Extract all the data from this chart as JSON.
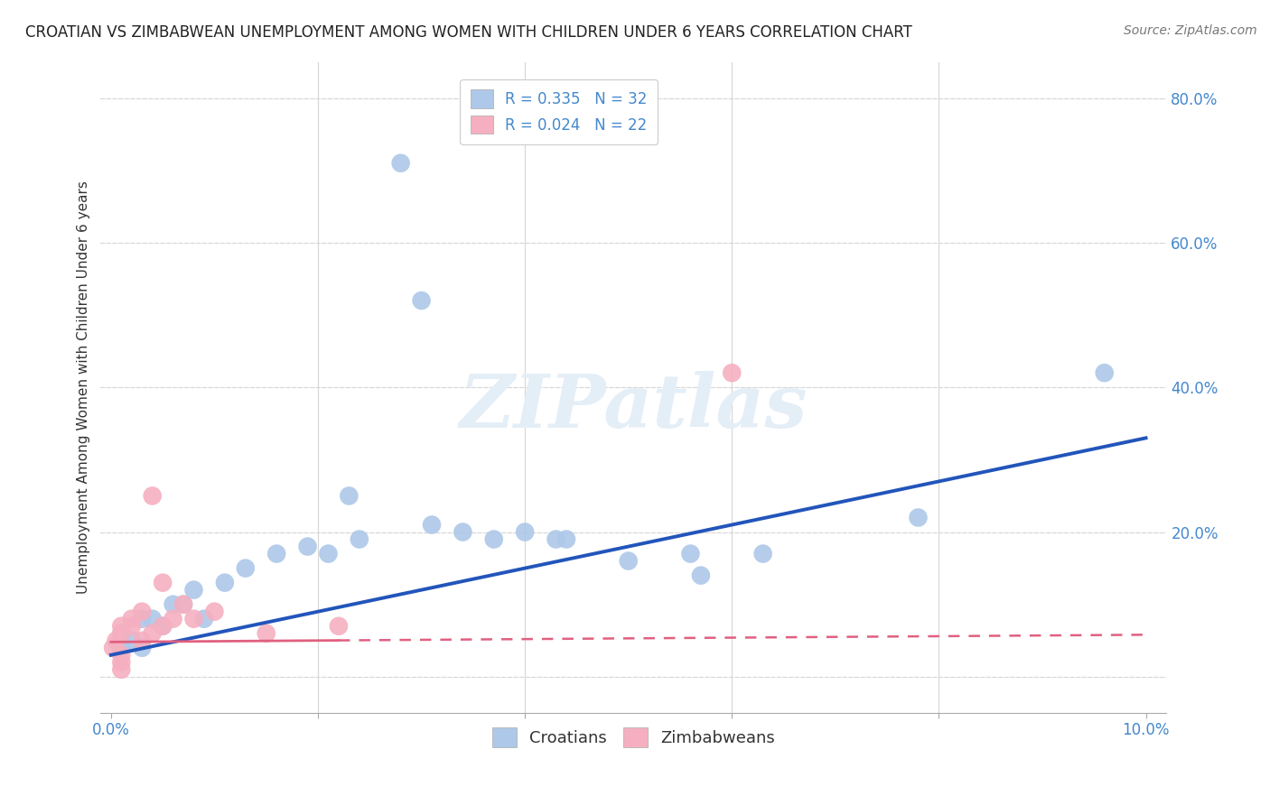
{
  "title": "CROATIAN VS ZIMBABWEAN UNEMPLOYMENT AMONG WOMEN WITH CHILDREN UNDER 6 YEARS CORRELATION CHART",
  "source": "Source: ZipAtlas.com",
  "ylabel": "Unemployment Among Women with Children Under 6 years",
  "xlim": [
    -0.001,
    0.102
  ],
  "ylim": [
    -0.05,
    0.85
  ],
  "ytick_vals": [
    0.0,
    0.2,
    0.4,
    0.6,
    0.8
  ],
  "ytick_labels": [
    "",
    "20.0%",
    "40.0%",
    "60.0%",
    "80.0%"
  ],
  "xtick_vals": [
    0.0,
    0.02,
    0.04,
    0.06,
    0.08,
    0.1
  ],
  "xtick_labels": [
    "0.0%",
    "",
    "",
    "",
    "",
    "10.0%"
  ],
  "croatian_R": 0.335,
  "croatian_N": 32,
  "zimbabwean_R": 0.024,
  "zimbabwean_N": 22,
  "croatian_color": "#adc8e8",
  "zimbabwean_color": "#f5afc0",
  "croatian_line_color": "#2255bb",
  "zimbabwean_line_color": "#e06080",
  "croatian_line_x0": 0.0,
  "croatian_line_y0": 0.03,
  "croatian_line_x1": 0.1,
  "croatian_line_y1": 0.33,
  "zimbabwean_line_x0": 0.0,
  "zimbabwean_line_y0": 0.048,
  "zimbabwean_line_x1": 0.1,
  "zimbabwean_line_y1": 0.058,
  "croatian_scatter_x": [
    0.001,
    0.001,
    0.002,
    0.003,
    0.003,
    0.004,
    0.005,
    0.006,
    0.007,
    0.008,
    0.009,
    0.011,
    0.013,
    0.016,
    0.019,
    0.021,
    0.023,
    0.024,
    0.028,
    0.03,
    0.031,
    0.034,
    0.037,
    0.04,
    0.043,
    0.044,
    0.05,
    0.056,
    0.057,
    0.063,
    0.078,
    0.096
  ],
  "croatian_scatter_y": [
    0.04,
    0.06,
    0.05,
    0.04,
    0.08,
    0.08,
    0.07,
    0.1,
    0.1,
    0.12,
    0.08,
    0.13,
    0.15,
    0.17,
    0.18,
    0.17,
    0.25,
    0.19,
    0.71,
    0.52,
    0.21,
    0.2,
    0.19,
    0.2,
    0.19,
    0.19,
    0.16,
    0.17,
    0.14,
    0.17,
    0.22,
    0.42
  ],
  "zimbabwean_scatter_x": [
    0.0002,
    0.0005,
    0.001,
    0.001,
    0.001,
    0.001,
    0.002,
    0.002,
    0.003,
    0.003,
    0.004,
    0.004,
    0.005,
    0.006,
    0.007,
    0.008,
    0.01,
    0.015,
    0.022,
    0.06,
    0.005,
    0.001
  ],
  "zimbabwean_scatter_y": [
    0.04,
    0.05,
    0.03,
    0.06,
    0.02,
    0.07,
    0.07,
    0.08,
    0.05,
    0.09,
    0.06,
    0.25,
    0.07,
    0.08,
    0.1,
    0.08,
    0.09,
    0.06,
    0.07,
    0.42,
    0.13,
    0.01
  ],
  "watermark_text": "ZIPatlas",
  "watermark_color": "#e4eef7",
  "background_color": "#ffffff",
  "grid_color": "#d8d8d8",
  "grid_style": "--",
  "title_color": "#222222",
  "source_color": "#777777",
  "tick_color": "#4488cc",
  "ylabel_color": "#333333"
}
